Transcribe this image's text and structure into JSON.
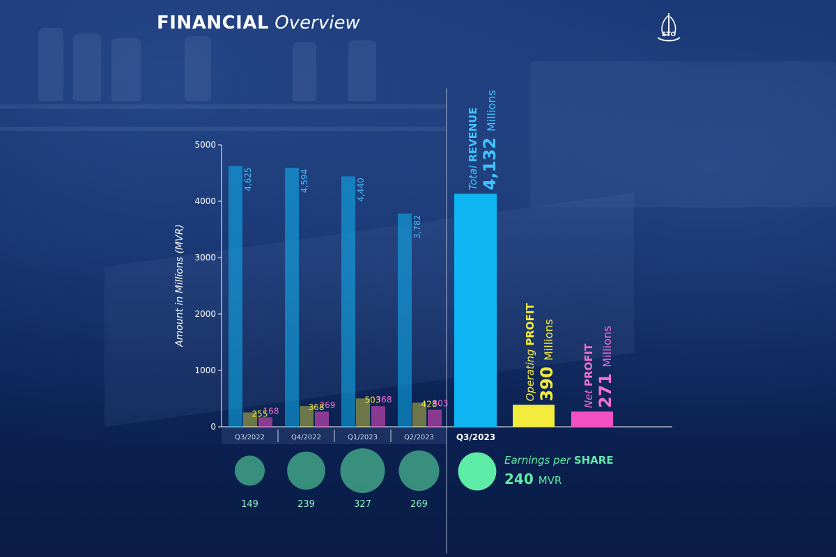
{
  "header": {
    "title_bold": "FINANCIAL",
    "title_light": "Overview",
    "logo_icon": "ship-sail-logo-icon",
    "logo_text": "STO"
  },
  "colors": {
    "revenue": "#0fb5f2",
    "operating_profit": "#f4ec3c",
    "net_profit": "#f44fc5",
    "eps": "#5eeba6",
    "background": "#0f2a63"
  },
  "chart_data": {
    "type": "bar",
    "ylabel": "Amount in Millions (MVR)",
    "ylim": [
      0,
      5000
    ],
    "yticks": [
      0,
      1000,
      2000,
      3000,
      4000,
      5000
    ],
    "categories": [
      "Q3/2022",
      "Q4/2022",
      "Q1/2023",
      "Q2/2023"
    ],
    "series": [
      {
        "name": "Total REVENUE",
        "values": [
          4625,
          4594,
          4440,
          3782
        ],
        "labels": [
          "4,625",
          "4,594",
          "4,440",
          "3,782"
        ]
      },
      {
        "name": "Operating PROFIT",
        "values": [
          255,
          368,
          503,
          428
        ],
        "labels": [
          "255",
          "368",
          "503",
          "428"
        ]
      },
      {
        "name": "Net PROFIT",
        "values": [
          168,
          269,
          368,
          303
        ],
        "labels": [
          "168",
          "269",
          "368",
          "303"
        ]
      }
    ],
    "eps": {
      "name": "Earnings per SHARE",
      "values": [
        149,
        239,
        327,
        269
      ],
      "labels": [
        "149",
        "239",
        "327",
        "269"
      ]
    },
    "current": {
      "category": "Q3/2023",
      "revenue": {
        "value": 4132,
        "prefix": "Total",
        "word": "REVENUE",
        "amount": "4,132",
        "unit": "Millions"
      },
      "operating_profit": {
        "value": 390,
        "prefix": "Operating",
        "word": "PROFIT",
        "amount": "390",
        "unit": "Millions"
      },
      "net_profit": {
        "value": 271,
        "prefix": "Net",
        "word": "PROFIT",
        "amount": "271",
        "unit": "Millions"
      },
      "eps": {
        "value": 240,
        "prefix": "Earnings per",
        "word": "SHARE",
        "amount": "240",
        "unit": "MVR"
      }
    }
  }
}
